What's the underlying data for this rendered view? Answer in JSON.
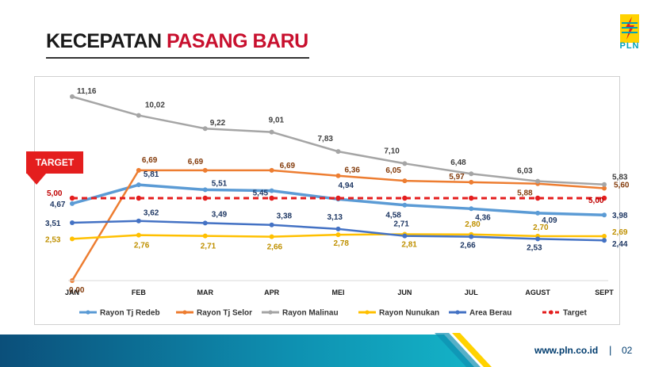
{
  "header": {
    "title_part1": "KECEPATAN",
    "title_part2": "PASANG BARU",
    "logo_text": "PLN"
  },
  "callout": {
    "label": "TARGET"
  },
  "footer": {
    "url": "www.pln.co.id",
    "separator": "|",
    "page": "02"
  },
  "colors": {
    "accent_red": "#c8102e",
    "teal": "#00a2b9",
    "navy": "#003c6e"
  },
  "chart_data": {
    "type": "line",
    "title": "",
    "xlabel": "",
    "ylabel": "",
    "ylim": [
      0,
      12
    ],
    "grid": false,
    "legend": "bottom",
    "categories": [
      "JAN",
      "FEB",
      "MAR",
      "APR",
      "MEI",
      "JUN",
      "JUL",
      "AGUST",
      "SEPT"
    ],
    "series": [
      {
        "name": "Rayon Tj Redeb",
        "color": "#5b9bd5",
        "dash": false,
        "width": 3.5,
        "values": [
          4.67,
          5.81,
          5.51,
          5.45,
          4.94,
          4.58,
          4.36,
          4.09,
          3.98
        ],
        "labels": [
          "4,67",
          "5,81",
          "5,51",
          "5,45",
          "4,94",
          "4,58",
          "4,36",
          "4,09",
          "3,98"
        ],
        "label_color": "#1f3864"
      },
      {
        "name": "Rayon Tj Selor",
        "color": "#ed7d31",
        "dash": false,
        "width": 2.5,
        "values": [
          0.0,
          6.69,
          6.69,
          6.69,
          6.36,
          6.05,
          5.97,
          5.88,
          5.6
        ],
        "labels": [
          "0,00",
          "6,69",
          "6,69",
          "6,69",
          "6,36",
          "6,05",
          "5,97",
          "5,88",
          "5,60"
        ],
        "label_color": "#843c0c"
      },
      {
        "name": "Rayon Malinau",
        "color": "#a5a5a5",
        "dash": false,
        "width": 2.5,
        "values": [
          11.16,
          10.02,
          9.22,
          9.01,
          7.83,
          7.1,
          6.48,
          6.03,
          5.83
        ],
        "labels": [
          "11,16",
          "10,02",
          "9,22",
          "9,01",
          "7,83",
          "7,10",
          "6,48",
          "6,03",
          "5,83"
        ],
        "label_color": "#404040"
      },
      {
        "name": "Rayon Nunukan",
        "color": "#ffc000",
        "dash": false,
        "width": 2.5,
        "values": [
          2.53,
          2.76,
          2.71,
          2.66,
          2.78,
          2.81,
          2.8,
          2.7,
          2.69
        ],
        "labels": [
          "2,53",
          "2,76",
          "2,71",
          "2,66",
          "2,78",
          "2,81",
          "2,80",
          "2,70",
          "2,69"
        ],
        "label_color": "#bf9000"
      },
      {
        "name": "Area Berau",
        "color": "#4472c4",
        "dash": false,
        "width": 2.5,
        "values": [
          3.51,
          3.62,
          3.49,
          3.38,
          3.13,
          2.71,
          2.66,
          2.53,
          2.44
        ],
        "labels": [
          "3,51",
          "3,62",
          "3,49",
          "3,38",
          "3,13",
          "2,71",
          "2,66",
          "2,53",
          "2,44"
        ],
        "label_color": "#1f3864"
      },
      {
        "name": "Target",
        "color": "#e41e1e",
        "dash": true,
        "width": 3,
        "values": [
          5.0,
          5.0,
          5.0,
          5.0,
          5.0,
          5.0,
          5.0,
          5.0,
          5.0
        ],
        "labels": [
          "5,00",
          "",
          "",
          "",
          "",
          "",
          "",
          "",
          "5,00"
        ],
        "label_color": "#c00000"
      }
    ]
  }
}
